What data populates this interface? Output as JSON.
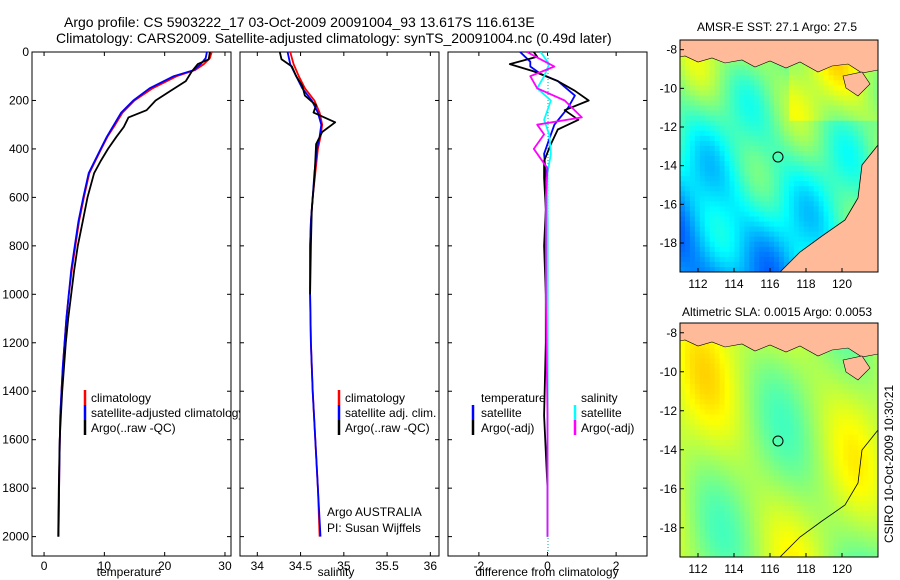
{
  "header": {
    "title_line1": "Argo profile: CS 5903222_17 03-Oct-2009 20091004_93 13.617S 116.613E",
    "title_line2": "Climatology: CARS2009. Satellite-adjusted climatology: synTS_20091004.nc (0.49d later)"
  },
  "side_stamp": "CSIRO  10-Oct-2009 10:30:21",
  "colors": {
    "climatology": "#ff0000",
    "satellite": "#0000ff",
    "argo": "#000000",
    "sal_satellite": "#00ffff",
    "sal_argo": "#ff00ff",
    "land": "#ffbb99",
    "coast": "#000000"
  },
  "chart_data": [
    {
      "id": "temperature",
      "type": "line",
      "xlabel": "temperature",
      "xlim": [
        -2,
        31
      ],
      "xticks": [
        0,
        10,
        20,
        30
      ],
      "xtick_labels": [
        "0",
        "10",
        "20",
        "30"
      ],
      "ylim": [
        2080,
        0
      ],
      "yticks": [
        0,
        200,
        400,
        600,
        800,
        1000,
        1200,
        1400,
        1600,
        1800,
        2000
      ],
      "ytick_labels": [
        "0",
        "200",
        "400",
        "600",
        "800",
        "1000",
        "1200",
        "1400",
        "1600",
        "1800",
        "2000"
      ],
      "legend": [
        "climatology",
        "satellite-adjusted climatology",
        "Argo(..raw -QC)"
      ],
      "series": [
        {
          "name": "climatology",
          "color_key": "climatology",
          "x": [
            27.8,
            27.5,
            26.5,
            25.0,
            22.0,
            18.0,
            15.0,
            13.0,
            11.8,
            10.5,
            9.5,
            8.5,
            7.5,
            6.6,
            5.8,
            5.2,
            4.6,
            4.1,
            3.7,
            3.4,
            3.1,
            2.9,
            2.7,
            2.55,
            2.4
          ],
          "y": [
            0,
            25,
            50,
            75,
            100,
            150,
            200,
            250,
            300,
            350,
            400,
            450,
            500,
            600,
            700,
            800,
            900,
            1000,
            1100,
            1200,
            1300,
            1400,
            1500,
            1700,
            2000
          ]
        },
        {
          "name": "satellite-adjusted climatology",
          "color_key": "satellite",
          "x": [
            27.0,
            26.8,
            26.0,
            24.8,
            21.5,
            17.5,
            14.8,
            12.8,
            11.6,
            10.4,
            9.4,
            8.4,
            7.4,
            6.5,
            5.7,
            5.1,
            4.5,
            4.1,
            3.7,
            3.4,
            3.1,
            2.9,
            2.7,
            2.55,
            2.4
          ],
          "y": [
            0,
            25,
            50,
            75,
            100,
            150,
            200,
            250,
            300,
            350,
            400,
            450,
            500,
            600,
            700,
            800,
            900,
            1000,
            1100,
            1200,
            1300,
            1400,
            1500,
            1700,
            2000
          ]
        },
        {
          "name": "Argo(..raw -QC)",
          "color_key": "argo",
          "x": [
            27.5,
            27.3,
            25.5,
            24.5,
            23.5,
            21.0,
            18.5,
            17.0,
            14.0,
            13.2,
            12.0,
            10.6,
            9.4,
            8.3,
            7.2,
            6.4,
            5.6,
            5.0,
            4.5,
            4.0,
            3.6,
            3.3,
            3.0,
            2.8,
            2.6,
            2.45,
            2.35
          ],
          "y": [
            0,
            30,
            50,
            80,
            120,
            160,
            200,
            240,
            270,
            310,
            350,
            400,
            450,
            500,
            600,
            700,
            800,
            900,
            1000,
            1100,
            1200,
            1300,
            1400,
            1500,
            1600,
            1800,
            2000
          ]
        }
      ]
    },
    {
      "id": "salinity",
      "type": "line",
      "xlabel": "salinity",
      "xlim": [
        33.8,
        36.1
      ],
      "xticks": [
        34,
        34.5,
        35,
        35.5,
        36
      ],
      "xtick_labels": [
        "34",
        "34.5",
        "35",
        "35.5",
        "36"
      ],
      "ylim": [
        2080,
        0
      ],
      "legend": [
        "climatology",
        "satellite adj. clim.",
        "Argo(..raw -QC)"
      ],
      "annotation": [
        "Argo AUSTRALIA",
        "PI: Susan Wijffels"
      ],
      "series": [
        {
          "name": "climatology",
          "color_key": "climatology",
          "x": [
            34.38,
            34.42,
            34.48,
            34.55,
            34.66,
            34.72,
            34.75,
            34.73,
            34.7,
            34.67,
            34.64,
            34.62,
            34.61,
            34.61,
            34.62,
            34.64,
            34.67,
            34.7,
            34.72
          ],
          "y": [
            0,
            50,
            100,
            150,
            200,
            250,
            300,
            350,
            400,
            500,
            600,
            700,
            800,
            1000,
            1200,
            1400,
            1600,
            1800,
            2000
          ]
        },
        {
          "name": "satellite adj. clim.",
          "color_key": "satellite",
          "x": [
            34.35,
            34.38,
            34.45,
            34.52,
            34.63,
            34.7,
            34.74,
            34.72,
            34.69,
            34.66,
            34.64,
            34.62,
            34.61,
            34.61,
            34.62,
            34.64,
            34.67,
            34.7,
            34.73
          ],
          "y": [
            0,
            50,
            100,
            150,
            200,
            250,
            300,
            350,
            400,
            500,
            600,
            700,
            800,
            1000,
            1200,
            1400,
            1600,
            1800,
            2000
          ]
        },
        {
          "name": "Argo(..raw -QC)",
          "color_key": "argo",
          "x": [
            34.26,
            34.28,
            34.4,
            34.45,
            34.52,
            34.55,
            34.68,
            34.65,
            34.9,
            34.75,
            34.68,
            34.67,
            34.66,
            34.63,
            34.62,
            34.61
          ],
          "y": [
            0,
            30,
            60,
            100,
            140,
            180,
            220,
            250,
            290,
            330,
            380,
            450,
            520,
            650,
            800,
            1000
          ]
        }
      ]
    },
    {
      "id": "difference",
      "type": "line",
      "xlabel": "difference from climatology",
      "xlim": [
        -2.9,
        2.9
      ],
      "xticks": [
        -2,
        0,
        2
      ],
      "xtick_labels": [
        "-2",
        "0",
        "2"
      ],
      "ylim": [
        2080,
        0
      ],
      "legend_left_title": "temperature",
      "legend_left": [
        "satellite",
        "Argo(-adj)"
      ],
      "legend_right_title": "salinity",
      "legend_right": [
        "satellite",
        "Argo(-adj)"
      ],
      "series": [
        {
          "name": "temperature satellite",
          "color_key": "satellite",
          "x": [
            -0.8,
            -0.5,
            -0.5,
            -0.2,
            0.3,
            0.8,
            0.6,
            0.2,
            0.05,
            -0.1,
            -0.05,
            0,
            0,
            0
          ],
          "y": [
            0,
            40,
            60,
            90,
            120,
            180,
            230,
            300,
            360,
            420,
            500,
            700,
            1000,
            2000
          ]
        },
        {
          "name": "temperature Argo(-adj)",
          "color_key": "argo",
          "x": [
            -0.4,
            -0.3,
            -1.1,
            -0.4,
            0.3,
            0.8,
            1.2,
            0.5,
            0.9,
            0.3,
            0.1,
            -0.1,
            -0.1,
            -0.05,
            -0.1,
            -0.05,
            -0.05,
            -0.1,
            0,
            0
          ],
          "y": [
            0,
            20,
            50,
            80,
            120,
            160,
            200,
            240,
            280,
            320,
            380,
            450,
            520,
            650,
            800,
            1000,
            1200,
            1500,
            1800,
            2000
          ]
        },
        {
          "name": "salinity satellite",
          "color_key": "sal_satellite",
          "x": [
            -0.2,
            0.05,
            -0.1,
            -0.3,
            0.1,
            -0.1,
            0.05,
            0.1,
            0,
            0,
            0,
            0
          ],
          "y": [
            0,
            50,
            100,
            150,
            200,
            280,
            340,
            420,
            500,
            700,
            1000,
            2000
          ]
        },
        {
          "name": "salinity Argo(-adj)",
          "color_key": "sal_argo",
          "x": [
            -0.6,
            -0.2,
            0.2,
            -0.5,
            -0.3,
            0.5,
            1.0,
            -0.3,
            -0.1,
            -0.4,
            0,
            -0.05,
            -0.05,
            -0.05,
            0,
            0
          ],
          "y": [
            0,
            30,
            60,
            100,
            150,
            200,
            270,
            300,
            340,
            400,
            480,
            600,
            800,
            1000,
            1500,
            2000
          ]
        }
      ]
    },
    {
      "id": "sst-map",
      "type": "heatmap",
      "title": "AMSR-E SST: 27.1 Argo: 27.5",
      "xlim": [
        111,
        122
      ],
      "ylim": [
        -19.5,
        -7.5
      ],
      "xticks": [
        112,
        114,
        116,
        118,
        120
      ],
      "xtick_labels": [
        "112",
        "114",
        "116",
        "118",
        "120"
      ],
      "yticks": [
        -8,
        -10,
        -12,
        -14,
        -16,
        -18
      ],
      "ytick_labels": [
        "-8",
        "-10",
        "-12",
        "-14",
        "-16",
        "-18"
      ],
      "marker": [
        116.6,
        -13.6
      ],
      "colormap": "jet"
    },
    {
      "id": "sla-map",
      "type": "heatmap",
      "title": "Altimetric SLA: 0.0015 Argo: 0.0053",
      "xlim": [
        111,
        122
      ],
      "ylim": [
        -19.5,
        -7.5
      ],
      "xticks": [
        112,
        114,
        116,
        118,
        120
      ],
      "xtick_labels": [
        "112",
        "114",
        "116",
        "118",
        "120"
      ],
      "yticks": [
        -8,
        -10,
        -12,
        -14,
        -16,
        -18
      ],
      "ytick_labels": [
        "-8",
        "-10",
        "-12",
        "-14",
        "-16",
        "-18"
      ],
      "marker": [
        116.6,
        -13.6
      ],
      "colormap": "jet"
    }
  ]
}
